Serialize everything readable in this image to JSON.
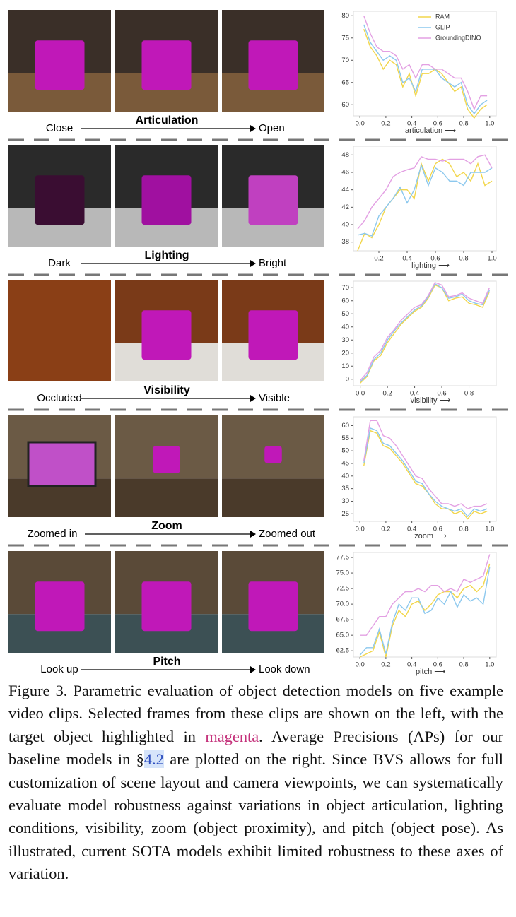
{
  "rows": [
    {
      "left": "Close",
      "axis": "Articulation",
      "right": "Open"
    },
    {
      "left": "Dark",
      "axis": "Lighting",
      "right": "Bright"
    },
    {
      "left": "Occluded",
      "axis": "Visibility",
      "right": "Visible"
    },
    {
      "left": "Zoomed in",
      "axis": "Zoom",
      "right": "Zoomed out"
    },
    {
      "left": "Look up",
      "axis": "Pitch",
      "right": "Look down"
    }
  ],
  "chart_data": [
    {
      "type": "line",
      "xlabel": "articulation ⟶",
      "legend": "upper right",
      "x": [
        0.03,
        0.08,
        0.13,
        0.18,
        0.23,
        0.28,
        0.33,
        0.38,
        0.43,
        0.48,
        0.53,
        0.58,
        0.63,
        0.68,
        0.73,
        0.78,
        0.83,
        0.88,
        0.93,
        0.98
      ],
      "xlim": [
        -0.05,
        1.05
      ],
      "xticks": [
        {
          "value": 0,
          "label": "0.0"
        },
        0.2,
        0.4,
        0.6,
        0.8,
        {
          "value": 1,
          "label": "1.0"
        }
      ],
      "ylim": [
        57.5,
        81
      ],
      "yticks": [
        60,
        65,
        70,
        75,
        80
      ],
      "series": [
        {
          "name": "RAM",
          "color": "#f2d64b",
          "values": [
            77,
            73,
            71,
            68,
            70,
            69,
            64,
            67,
            62,
            67,
            67,
            68,
            67,
            65,
            63,
            64,
            59,
            57,
            59,
            60
          ]
        },
        {
          "name": "GLIP",
          "color": "#8cc8ee",
          "values": [
            78,
            74,
            72,
            70,
            71,
            70,
            65,
            66,
            63,
            68,
            68,
            68,
            66,
            65,
            64,
            65,
            60,
            58,
            60,
            61
          ]
        },
        {
          "name": "GroundingDINO",
          "color": "#e3a0e3",
          "values": [
            80,
            76,
            73,
            72,
            72,
            71,
            68,
            69,
            66,
            69,
            69,
            68,
            68,
            67,
            66,
            66,
            63,
            59,
            62,
            62
          ]
        }
      ]
    },
    {
      "type": "line",
      "xlabel": "lighting ⟶",
      "x": [
        0.05,
        0.1,
        0.15,
        0.2,
        0.25,
        0.3,
        0.35,
        0.4,
        0.45,
        0.5,
        0.55,
        0.6,
        0.65,
        0.7,
        0.75,
        0.8,
        0.85,
        0.9,
        0.95,
        1.0
      ],
      "xlim": [
        0.02,
        1.03
      ],
      "xticks": [
        0.2,
        0.4,
        0.6,
        0.8,
        {
          "value": 1,
          "label": "1.0"
        }
      ],
      "ylim": [
        37,
        49
      ],
      "yticks": [
        38,
        40,
        42,
        44,
        46,
        48
      ],
      "series": [
        {
          "color": "#f2d64b",
          "values": [
            37,
            39,
            38.5,
            40,
            42,
            43,
            44,
            44,
            43,
            47,
            45,
            47,
            47.5,
            47,
            45.5,
            46,
            45,
            47,
            44.5,
            45
          ]
        },
        {
          "color": "#8cc8ee",
          "values": [
            38.8,
            39,
            38.7,
            41,
            42,
            43,
            44.3,
            42.5,
            44,
            46.8,
            44.5,
            46.5,
            46,
            45,
            45,
            44.5,
            46,
            46,
            46,
            46.5
          ]
        },
        {
          "color": "#e3a0e3",
          "values": [
            39.5,
            40.5,
            42,
            43,
            44,
            45.5,
            46,
            46.3,
            46.5,
            47.8,
            47.5,
            47.5,
            47.3,
            47.5,
            47.5,
            47.5,
            47,
            47.8,
            48,
            46.5
          ]
        }
      ]
    },
    {
      "type": "line",
      "xlabel": "visibility ⟶",
      "x": [
        0.0,
        0.05,
        0.1,
        0.15,
        0.2,
        0.25,
        0.3,
        0.35,
        0.4,
        0.45,
        0.5,
        0.55,
        0.6,
        0.65,
        0.7,
        0.75,
        0.8,
        0.85,
        0.9,
        0.95
      ],
      "xlim": [
        -0.05,
        1.0
      ],
      "xticks": [
        {
          "value": 0,
          "label": "0.0"
        },
        0.2,
        0.4,
        0.6,
        0.8
      ],
      "ylim": [
        -5,
        75
      ],
      "yticks": [
        0,
        10,
        20,
        30,
        40,
        50,
        60,
        70
      ],
      "series": [
        {
          "color": "#f2d64b",
          "values": [
            -3,
            2,
            14,
            18,
            28,
            35,
            42,
            47,
            52,
            55,
            62,
            72,
            70,
            60,
            62,
            63,
            58,
            57,
            55,
            67
          ]
        },
        {
          "color": "#8cc8ee",
          "values": [
            -2,
            3,
            15,
            20,
            30,
            37,
            43,
            48,
            53,
            56,
            63,
            73,
            70,
            62,
            63,
            65,
            60,
            58,
            57,
            68
          ]
        },
        {
          "color": "#e3a0e3",
          "values": [
            -1,
            5,
            17,
            22,
            32,
            38,
            45,
            50,
            55,
            57,
            64,
            74,
            72,
            63,
            64,
            66,
            62,
            60,
            58,
            70
          ]
        }
      ]
    },
    {
      "type": "line",
      "xlabel": "zoom ⟶",
      "x": [
        0.03,
        0.08,
        0.13,
        0.18,
        0.23,
        0.28,
        0.33,
        0.38,
        0.43,
        0.48,
        0.53,
        0.58,
        0.63,
        0.68,
        0.73,
        0.78,
        0.83,
        0.88,
        0.93,
        0.98
      ],
      "xlim": [
        -0.05,
        1.05
      ],
      "xticks": [
        {
          "value": 0,
          "label": "0.0"
        },
        0.2,
        0.4,
        0.6,
        0.8,
        {
          "value": 1,
          "label": "1.0"
        }
      ],
      "ylim": [
        22,
        63.5
      ],
      "yticks": [
        25,
        30,
        35,
        40,
        45,
        50,
        55,
        60
      ],
      "series": [
        {
          "color": "#f2d64b",
          "values": [
            44,
            58,
            57,
            52,
            51,
            48,
            45,
            41,
            37,
            36,
            33,
            29,
            27,
            27,
            25,
            26,
            23,
            26,
            25,
            26
          ]
        },
        {
          "color": "#8cc8ee",
          "values": [
            45,
            59,
            58,
            53,
            52,
            49,
            46,
            42,
            38,
            37,
            33,
            30,
            28,
            27,
            26,
            27,
            24,
            27,
            26,
            27
          ]
        },
        {
          "color": "#e3a0e3",
          "values": [
            46,
            62,
            62,
            56,
            55,
            52,
            48,
            44,
            40,
            39,
            35,
            32,
            29,
            29,
            28,
            29,
            27,
            28,
            28,
            29
          ]
        }
      ]
    },
    {
      "type": "line",
      "xlabel": "pitch ⟶",
      "x": [
        0.0,
        0.05,
        0.1,
        0.15,
        0.2,
        0.25,
        0.3,
        0.35,
        0.4,
        0.45,
        0.5,
        0.55,
        0.6,
        0.65,
        0.7,
        0.75,
        0.8,
        0.85,
        0.9,
        0.95,
        1.0
      ],
      "xlim": [
        -0.05,
        1.05
      ],
      "xticks": [
        {
          "value": 0,
          "label": "0.0"
        },
        0.2,
        0.4,
        0.6,
        0.8,
        {
          "value": 1,
          "label": "1.0"
        }
      ],
      "ylim": [
        61.5,
        78.3
      ],
      "yticks": [
        62.5,
        {
          "value": 65,
          "label": "65.0"
        },
        67.5,
        {
          "value": 70,
          "label": "70.0"
        },
        72.5,
        {
          "value": 75,
          "label": "75.0"
        },
        77.5
      ],
      "series": [
        {
          "color": "#f2d64b",
          "values": [
            61.5,
            62,
            62.5,
            65.5,
            61.5,
            66.5,
            69,
            68,
            70,
            70.5,
            69,
            70,
            71.5,
            72,
            72,
            71,
            72.5,
            73,
            72,
            73,
            76.5
          ]
        },
        {
          "color": "#8cc8ee",
          "values": [
            61.8,
            63,
            63,
            66,
            62,
            67,
            70,
            69,
            71,
            71,
            68.5,
            69,
            71,
            70,
            72,
            69.5,
            71.5,
            70.5,
            71,
            70,
            76
          ]
        },
        {
          "color": "#e3a0e3",
          "values": [
            65,
            65,
            66.5,
            68,
            68,
            70,
            71,
            72,
            72,
            72.5,
            72,
            73,
            73,
            72,
            72.5,
            72,
            74,
            73.5,
            74,
            74.5,
            78
          ]
        }
      ]
    }
  ],
  "caption": [
    "Figure 3. Parametric evaluation of object detection models on five example video clips. Selected frames from these clips are shown on the left, with the target object highlighted in ",
    "magenta",
    ". Average Precisions (APs) for our baseline models in §",
    "4.2",
    " are plotted on the right. Since BVS allows for full customization of scene layout and camera viewpoints, we can systematically evaluate model robustness against variations in object articulation, lighting conditions, visibility, zoom (object proximity), and pitch (object pose). As illustrated, current SOTA models exhibit limited robustness to these axes of variation."
  ]
}
